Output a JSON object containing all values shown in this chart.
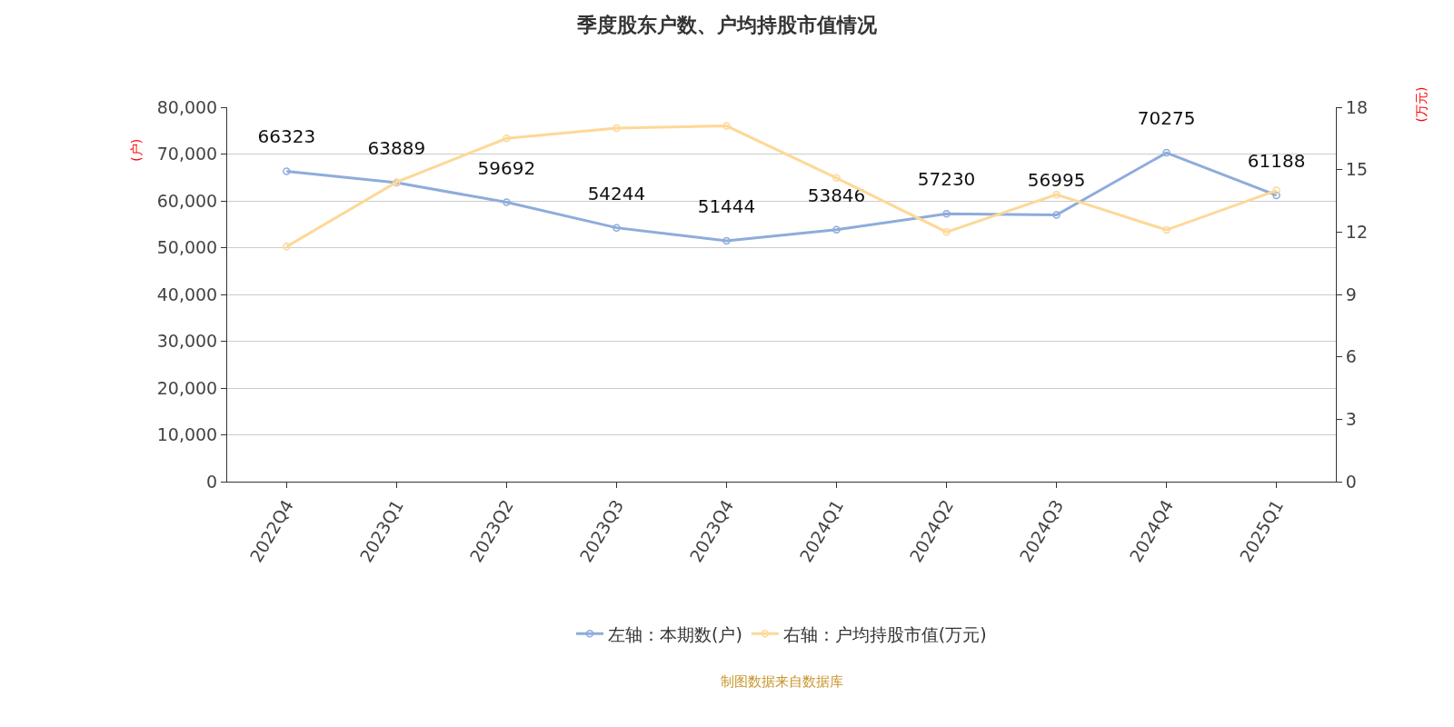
{
  "chart_data": {
    "type": "line",
    "title": "季度股东户数、户均持股市值情况",
    "ylabel": "(户)",
    "y2label": "(万元)",
    "categories": [
      "2022Q4",
      "2023Q1",
      "2023Q2",
      "2023Q3",
      "2023Q4",
      "2024Q1",
      "2024Q2",
      "2024Q3",
      "2024Q4",
      "2025Q1"
    ],
    "series": [
      {
        "name": "左轴：本期数(户)",
        "color": "#8eacdb",
        "values": [
          66323,
          63889,
          59692,
          54244,
          51444,
          53846,
          57230,
          56995,
          70275,
          61188
        ],
        "value_labels": [
          "66323",
          "63889",
          "59692",
          "54244",
          "51444",
          "53846",
          "57230",
          "56995",
          "70275",
          "61188"
        ]
      },
      {
        "name": "右轴：户均持股市值(万元)",
        "color": "#fdd898",
        "axis": "y2",
        "values": [
          11.3,
          14.4,
          16.5,
          17.0,
          17.1,
          14.6,
          12.0,
          13.8,
          12.1,
          14.0
        ]
      }
    ],
    "ylim": [
      0,
      80000
    ],
    "yticks": [
      {
        "value": 0,
        "label": "0"
      },
      {
        "value": 10000,
        "label": "10,000"
      },
      {
        "value": 20000,
        "label": "20,000"
      },
      {
        "value": 30000,
        "label": "30,000"
      },
      {
        "value": 40000,
        "label": "40,000"
      },
      {
        "value": 50000,
        "label": "50,000"
      },
      {
        "value": 60000,
        "label": "60,000"
      },
      {
        "value": 70000,
        "label": "70,000"
      },
      {
        "value": 80000,
        "label": "80,000"
      }
    ],
    "y2lim": [
      0,
      18
    ],
    "y2ticks": [
      0,
      3,
      6,
      9,
      12,
      15,
      18
    ],
    "grid": "y",
    "legend": "bottom",
    "marker": "circle",
    "line_style": "solid",
    "annotations": [
      "制图数据来自数据库"
    ]
  }
}
